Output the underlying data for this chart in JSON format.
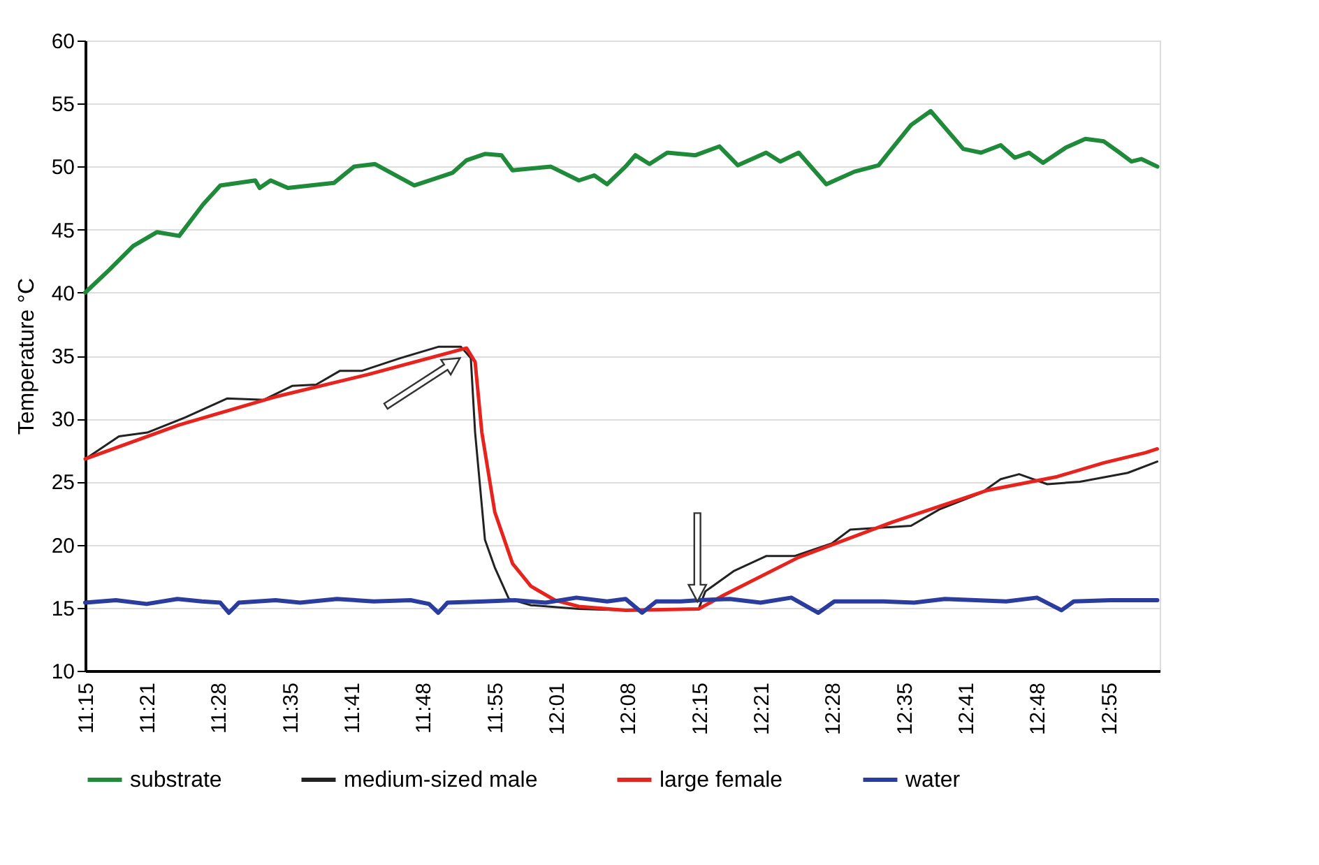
{
  "chart_data": {
    "type": "line",
    "ylabel": "Temperature °C",
    "xlim": [
      11.25,
      13.0
    ],
    "ylim": [
      10,
      60
    ],
    "yticks": [
      10,
      15,
      20,
      25,
      30,
      35,
      40,
      45,
      50,
      55,
      60
    ],
    "xticks": [
      {
        "value": 11.25,
        "label": "11:15"
      },
      {
        "value": 11.35,
        "label": "11:21"
      },
      {
        "value": 11.4667,
        "label": "11:28"
      },
      {
        "value": 11.5833,
        "label": "11:35"
      },
      {
        "value": 11.6833,
        "label": "11:41"
      },
      {
        "value": 11.8,
        "label": "11:48"
      },
      {
        "value": 11.9167,
        "label": "11:55"
      },
      {
        "value": 12.0167,
        "label": "12:01"
      },
      {
        "value": 12.1333,
        "label": "12:08"
      },
      {
        "value": 12.25,
        "label": "12:15"
      },
      {
        "value": 12.35,
        "label": "12:21"
      },
      {
        "value": 12.4667,
        "label": "12:28"
      },
      {
        "value": 12.5833,
        "label": "12:35"
      },
      {
        "value": 12.6833,
        "label": "12:41"
      },
      {
        "value": 12.8,
        "label": "12:48"
      },
      {
        "value": 12.9167,
        "label": "12:55"
      }
    ],
    "grid": "y",
    "legend": "bottom",
    "line_style": "solid",
    "marker": "none",
    "series": [
      {
        "name": "substrate",
        "color": "#1e8a3a",
        "x": [
          11.25,
          11.289,
          11.328,
          11.367,
          11.403,
          11.442,
          11.47,
          11.527,
          11.534,
          11.552,
          11.58,
          11.655,
          11.688,
          11.722,
          11.786,
          11.848,
          11.871,
          11.901,
          11.928,
          11.946,
          12.008,
          12.054,
          12.079,
          12.1,
          12.13,
          12.146,
          12.169,
          12.198,
          12.244,
          12.283,
          12.313,
          12.359,
          12.382,
          12.412,
          12.457,
          12.503,
          12.542,
          12.595,
          12.627,
          12.68,
          12.709,
          12.741,
          12.764,
          12.787,
          12.81,
          12.847,
          12.879,
          12.909,
          12.932,
          12.954,
          12.97,
          12.996
        ],
        "values": [
          40.0,
          41.8,
          43.7,
          44.8,
          44.5,
          47.0,
          48.5,
          48.9,
          48.3,
          48.9,
          48.3,
          48.7,
          50.0,
          50.2,
          48.5,
          49.5,
          50.5,
          51.0,
          50.9,
          49.7,
          50.0,
          48.9,
          49.3,
          48.6,
          50.0,
          50.9,
          50.2,
          51.1,
          50.9,
          51.6,
          50.1,
          51.1,
          50.4,
          51.1,
          48.6,
          49.6,
          50.1,
          53.3,
          54.4,
          51.4,
          51.1,
          51.7,
          50.7,
          51.1,
          50.3,
          51.5,
          52.2,
          52.0,
          51.2,
          50.4,
          50.6,
          50.0
        ]
      },
      {
        "name": "medium-sized male",
        "color": "#222222",
        "x": [
          11.25,
          11.305,
          11.351,
          11.413,
          11.481,
          11.541,
          11.587,
          11.626,
          11.665,
          11.701,
          11.763,
          11.825,
          11.862,
          11.878,
          11.885,
          11.901,
          11.917,
          11.94,
          11.976,
          12.054,
          12.13,
          12.249,
          12.26,
          12.306,
          12.359,
          12.405,
          12.466,
          12.496,
          12.595,
          12.641,
          12.709,
          12.741,
          12.771,
          12.817,
          12.87,
          12.948,
          12.996
        ],
        "values": [
          26.8,
          28.6,
          28.9,
          30.1,
          31.6,
          31.5,
          32.6,
          32.7,
          33.8,
          33.8,
          34.8,
          35.7,
          35.7,
          34.8,
          28.9,
          20.4,
          18.2,
          15.7,
          15.2,
          14.9,
          14.8,
          14.9,
          16.3,
          17.9,
          19.1,
          19.1,
          20.1,
          21.2,
          21.5,
          22.8,
          24.1,
          25.2,
          25.6,
          24.8,
          25.0,
          25.7,
          26.6
        ]
      },
      {
        "name": "large female",
        "color": "#e8231e",
        "x": [
          11.25,
          11.403,
          11.557,
          11.71,
          11.871,
          11.885,
          11.896,
          11.917,
          11.946,
          11.976,
          12.015,
          12.054,
          12.13,
          12.249,
          12.29,
          12.412,
          12.565,
          12.718,
          12.833,
          12.909,
          12.977,
          12.996
        ],
        "values": [
          26.8,
          29.5,
          31.7,
          33.5,
          35.6,
          34.5,
          28.9,
          22.6,
          18.5,
          16.7,
          15.6,
          15.1,
          14.8,
          14.9,
          16.0,
          19.0,
          21.8,
          24.3,
          25.4,
          26.5,
          27.3,
          27.6
        ]
      },
      {
        "name": "water",
        "color": "#2a3d9e",
        "x": [
          11.25,
          11.3,
          11.35,
          11.4,
          11.44,
          11.47,
          11.484,
          11.5,
          11.56,
          11.6,
          11.66,
          11.72,
          11.78,
          11.81,
          11.825,
          11.84,
          11.9,
          11.95,
          12.0,
          12.05,
          12.1,
          12.13,
          12.157,
          12.18,
          12.22,
          12.25,
          12.3,
          12.35,
          12.4,
          12.444,
          12.47,
          12.55,
          12.6,
          12.65,
          12.7,
          12.75,
          12.8,
          12.84,
          12.86,
          12.92,
          12.996
        ],
        "values": [
          15.4,
          15.6,
          15.3,
          15.7,
          15.5,
          15.4,
          14.6,
          15.4,
          15.6,
          15.4,
          15.7,
          15.5,
          15.6,
          15.3,
          14.6,
          15.4,
          15.5,
          15.6,
          15.4,
          15.8,
          15.5,
          15.7,
          14.6,
          15.5,
          15.5,
          15.6,
          15.7,
          15.4,
          15.8,
          14.6,
          15.5,
          15.5,
          15.4,
          15.7,
          15.6,
          15.5,
          15.8,
          14.8,
          15.5,
          15.6,
          15.6
        ]
      }
    ]
  }
}
